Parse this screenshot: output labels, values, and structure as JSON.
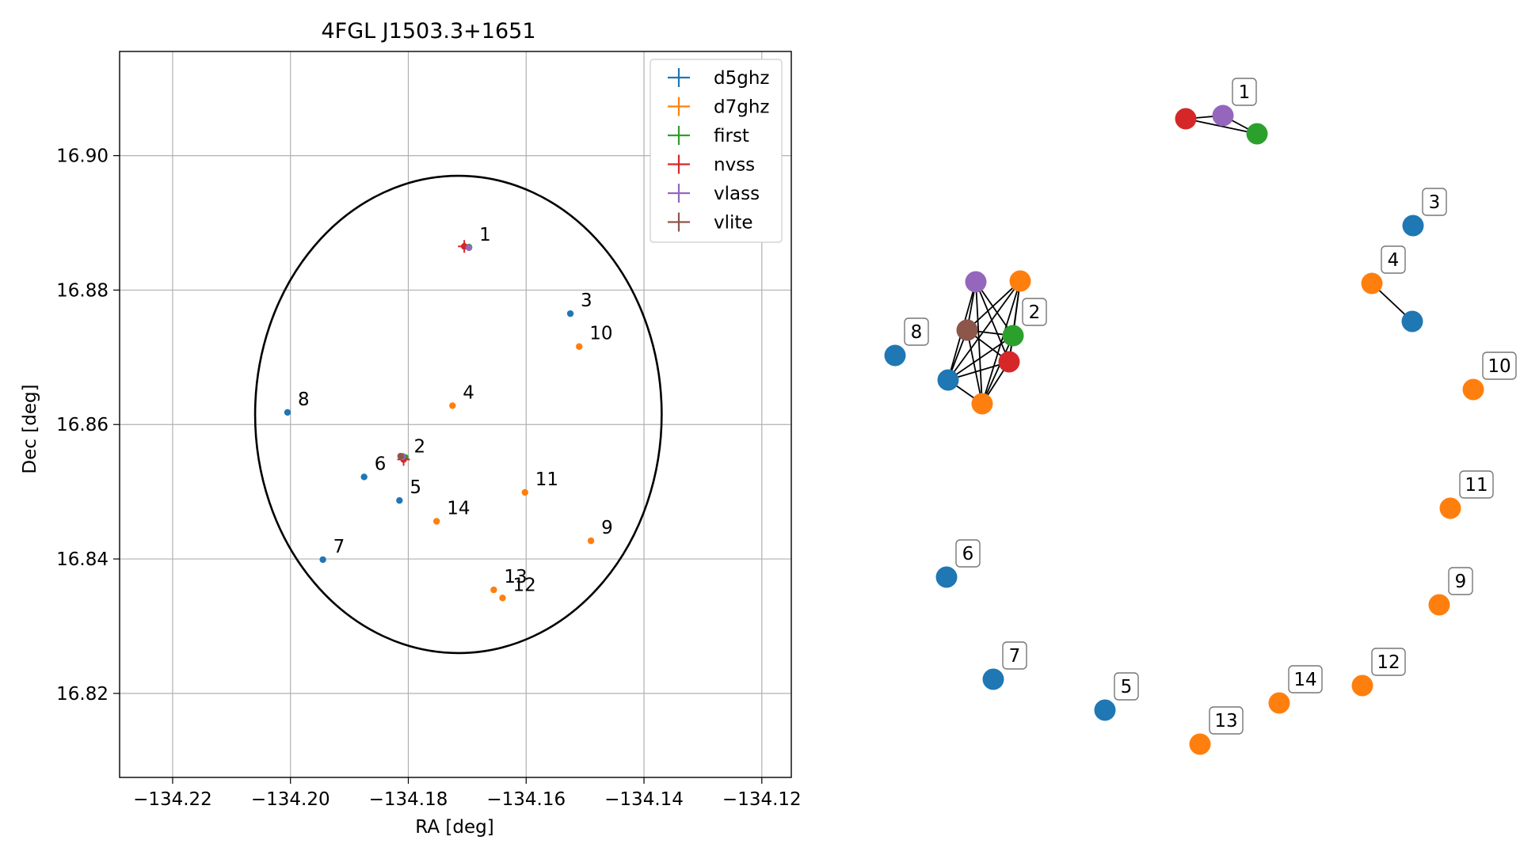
{
  "chart_data": [
    {
      "type": "scatter",
      "title": "4FGL J1503.3+1651",
      "xlabel": "RA [deg]",
      "ylabel": "Dec [deg]",
      "xlim": [
        -134.229,
        -134.115
      ],
      "ylim": [
        16.8075,
        16.9155
      ],
      "x_ticks": [
        -134.22,
        -134.2,
        -134.18,
        -134.16,
        -134.14,
        -134.12
      ],
      "x_tick_labels": [
        "−134.22",
        "−134.20",
        "−134.18",
        "−134.16",
        "−134.14",
        "−134.12"
      ],
      "y_ticks": [
        16.82,
        16.84,
        16.86,
        16.88,
        16.9
      ],
      "y_tick_labels": [
        "16.82",
        "16.84",
        "16.86",
        "16.88",
        "16.90"
      ],
      "grid": true,
      "legend_position": "top-right",
      "ellipse": {
        "center": [
          -134.1715,
          16.8615
        ],
        "semi_axis_ra": 0.0345,
        "semi_axis_dec": 0.0355
      },
      "series": [
        {
          "name": "d5ghz",
          "color": "#1f77b4",
          "points": [
            {
              "label": "3",
              "x": -134.1525,
              "y": 16.8765
            },
            {
              "label": "8",
              "x": -134.2005,
              "y": 16.8618
            },
            {
              "label": "6",
              "x": -134.1875,
              "y": 16.8522
            },
            {
              "label": "5",
              "x": -134.1815,
              "y": 16.8487
            },
            {
              "label": "7",
              "x": -134.1945,
              "y": 16.8399
            }
          ]
        },
        {
          "name": "d7ghz",
          "color": "#ff7f0e",
          "points": [
            {
              "label": "10",
              "x": -134.151,
              "y": 16.8716
            },
            {
              "label": "4",
              "x": -134.1725,
              "y": 16.8628
            },
            {
              "label": "11",
              "x": -134.1602,
              "y": 16.8499
            },
            {
              "label": "14",
              "x": -134.1752,
              "y": 16.8456
            },
            {
              "label": "9",
              "x": -134.149,
              "y": 16.8427
            },
            {
              "label": "13",
              "x": -134.1655,
              "y": 16.8354
            },
            {
              "label": "12",
              "x": -134.164,
              "y": 16.8342
            }
          ]
        },
        {
          "name": "first",
          "color": "#2ca02c",
          "points": [
            {
              "label": "",
              "x": -134.1697,
              "y": 16.8864
            },
            {
              "label": "",
              "x": -134.1805,
              "y": 16.8551
            }
          ]
        },
        {
          "name": "nvss",
          "color": "#d62728",
          "points": [
            {
              "label": "",
              "x": -134.1705,
              "y": 16.8865
            },
            {
              "label": "2",
              "x": -134.1808,
              "y": 16.8548
            }
          ]
        },
        {
          "name": "vlass",
          "color": "#9467bd",
          "points": [
            {
              "label": "1",
              "x": -134.1697,
              "y": 16.8863
            },
            {
              "label": "",
              "x": -134.181,
              "y": 16.8552
            }
          ]
        },
        {
          "name": "vlite",
          "color": "#8c564b",
          "points": [
            {
              "label": "",
              "x": -134.1813,
              "y": 16.8553
            }
          ]
        }
      ]
    },
    {
      "type": "network",
      "nodes": [
        {
          "id": "r",
          "color": "#d62728",
          "label": ""
        },
        {
          "id": "p1",
          "color": "#9467bd",
          "label": "1"
        },
        {
          "id": "g1",
          "color": "#2ca02c",
          "label": ""
        },
        {
          "id": "b3",
          "color": "#1f77b4",
          "label": "3"
        },
        {
          "id": "o4",
          "color": "#ff7f0e",
          "label": "4"
        },
        {
          "id": "b4",
          "color": "#1f77b4",
          "label": ""
        },
        {
          "id": "pu",
          "color": "#9467bd",
          "label": ""
        },
        {
          "id": "ot",
          "color": "#ff7f0e",
          "label": ""
        },
        {
          "id": "br",
          "color": "#8c564b",
          "label": ""
        },
        {
          "id": "g2",
          "color": "#2ca02c",
          "label": "2"
        },
        {
          "id": "r2",
          "color": "#d62728",
          "label": ""
        },
        {
          "id": "bb",
          "color": "#1f77b4",
          "label": ""
        },
        {
          "id": "ob",
          "color": "#ff7f0e",
          "label": ""
        },
        {
          "id": "b8",
          "color": "#1f77b4",
          "label": "8"
        },
        {
          "id": "o10",
          "color": "#ff7f0e",
          "label": "10"
        },
        {
          "id": "o11",
          "color": "#ff7f0e",
          "label": "11"
        },
        {
          "id": "b6",
          "color": "#1f77b4",
          "label": "6"
        },
        {
          "id": "o9",
          "color": "#ff7f0e",
          "label": "9"
        },
        {
          "id": "b7",
          "color": "#1f77b4",
          "label": "7"
        },
        {
          "id": "o12",
          "color": "#ff7f0e",
          "label": "12"
        },
        {
          "id": "b5",
          "color": "#1f77b4",
          "label": "5"
        },
        {
          "id": "o14",
          "color": "#ff7f0e",
          "label": "14"
        },
        {
          "id": "o13",
          "color": "#ff7f0e",
          "label": "13"
        }
      ],
      "edges": [
        [
          "r",
          "p1"
        ],
        [
          "p1",
          "g1"
        ],
        [
          "r",
          "g1"
        ],
        [
          "o4",
          "b4"
        ],
        [
          "pu",
          "br"
        ],
        [
          "pu",
          "g2"
        ],
        [
          "pu",
          "r2"
        ],
        [
          "pu",
          "bb"
        ],
        [
          "pu",
          "ob"
        ],
        [
          "ot",
          "br"
        ],
        [
          "ot",
          "g2"
        ],
        [
          "ot",
          "r2"
        ],
        [
          "ot",
          "bb"
        ],
        [
          "ot",
          "ob"
        ],
        [
          "br",
          "g2"
        ],
        [
          "br",
          "r2"
        ],
        [
          "br",
          "bb"
        ],
        [
          "br",
          "ob"
        ],
        [
          "g2",
          "r2"
        ],
        [
          "g2",
          "bb"
        ],
        [
          "g2",
          "ob"
        ],
        [
          "r2",
          "bb"
        ],
        [
          "r2",
          "ob"
        ],
        [
          "bb",
          "ob"
        ]
      ]
    }
  ]
}
